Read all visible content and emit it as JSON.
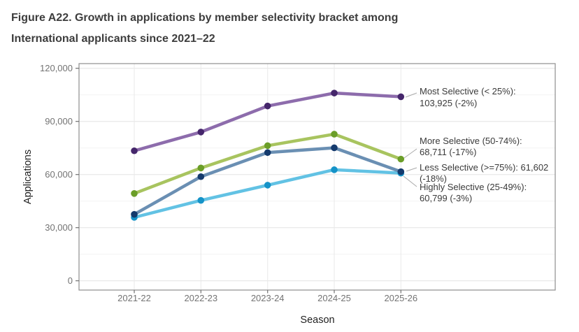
{
  "figure": {
    "title_line1": "Figure A22. Growth in applications by member selectivity bracket among",
    "title_line2": "International applicants since 2021–22"
  },
  "chart_data": {
    "type": "line",
    "title": "Growth in applications by member selectivity bracket among International applicants since 2021–22",
    "xlabel": "Season",
    "ylabel": "Applications",
    "categories": [
      "2021-22",
      "2022-23",
      "2023-24",
      "2024-25",
      "2025-26"
    ],
    "ylim": [
      0,
      120000
    ],
    "yticks": [
      0,
      30000,
      60000,
      90000,
      120000
    ],
    "ytick_labels": [
      "0",
      "30,000",
      "60,000",
      "90,000",
      "120,000"
    ],
    "grid": "horizontal major+minor, vertical major only",
    "legend_position": "inline-right-labels",
    "series": [
      {
        "name": "Highly Selective (25-49%)",
        "line_color": "#62c2e4",
        "point_color": "#1593c8",
        "values": [
          35800,
          45400,
          54000,
          62700,
          60799
        ],
        "final_value": "60,799",
        "final_change": "-3%",
        "label_lines": [
          "Highly Selective (25-49%):",
          "60,799 (-3%)"
        ]
      },
      {
        "name": "Less Selective (>=75%)",
        "line_color": "#6a8fb3",
        "point_color": "#143a6d",
        "values": [
          37500,
          58800,
          72400,
          75100,
          61602
        ],
        "final_value": "61,602",
        "final_change": "-18%",
        "label_lines": [
          "Less Selective (>=75%): 61,602",
          "(-18%)"
        ]
      },
      {
        "name": "More Selective (50-74%)",
        "line_color": "#a8c45f",
        "point_color": "#6b9e28",
        "values": [
          49300,
          63700,
          76300,
          82800,
          68711
        ],
        "final_value": "68,711",
        "final_change": "-17%",
        "label_lines": [
          "More Selective (50-74%):",
          "68,711 (-17%)"
        ]
      },
      {
        "name": "Most Selective (< 25%)",
        "line_color": "#8d6cac",
        "point_color": "#45266b",
        "values": [
          73400,
          84000,
          98700,
          106000,
          103925
        ],
        "final_value": "103,925",
        "final_change": "-2%",
        "label_lines": [
          "Most Selective (< 25%):",
          "103,925 (-2%)"
        ]
      }
    ]
  }
}
